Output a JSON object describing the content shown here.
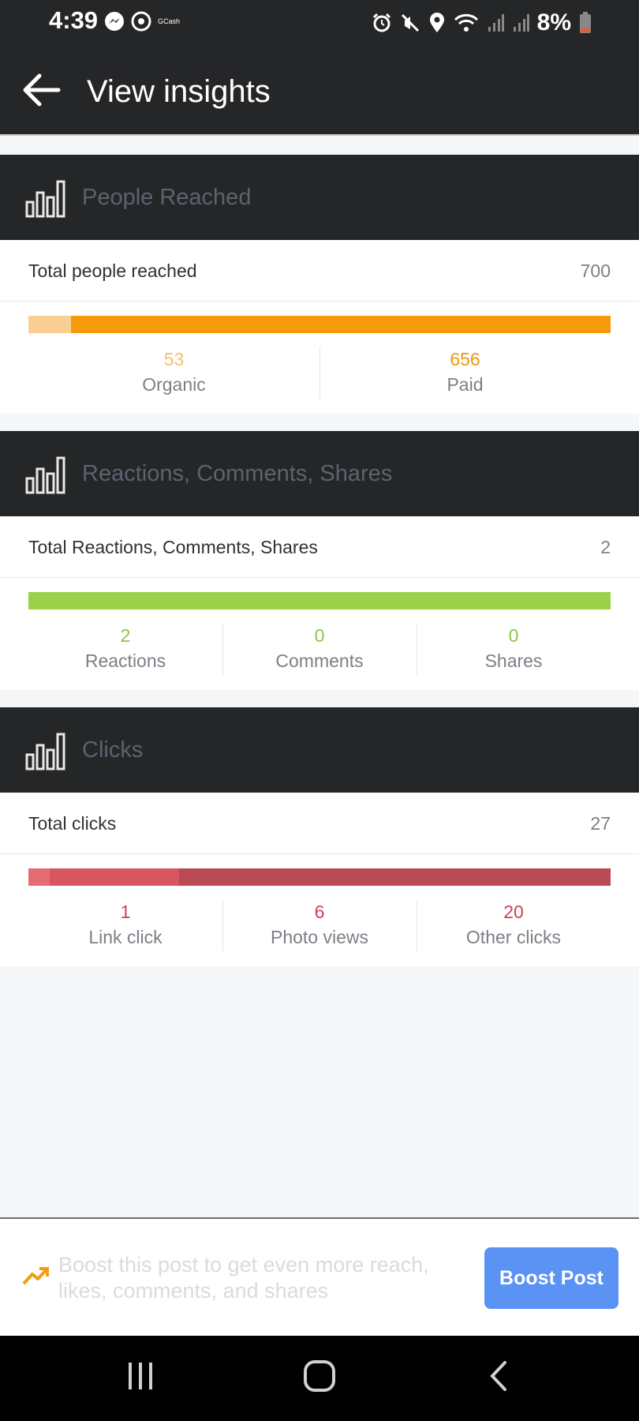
{
  "status_bar": {
    "time": "4:39",
    "app_label": "GCash",
    "battery": "8%",
    "icons_left": [
      "messenger-icon",
      "gcash-icon"
    ],
    "icons_right": [
      "alarm-icon",
      "mute-icon",
      "location-icon",
      "wifi-icon",
      "signal-icon",
      "signal-icon",
      "battery-icon"
    ]
  },
  "header": {
    "title": "View insights",
    "back_icon": "arrow-left-icon"
  },
  "sections": {
    "people": {
      "title": "People Reached",
      "total_label": "Total people reached",
      "total_value": "700",
      "bar_colors": [
        "#fbcf93",
        "#f59a0c"
      ],
      "stats": [
        {
          "value": "53",
          "label": "Organic",
          "color": "#f7bf6b"
        },
        {
          "value": "656",
          "label": "Paid",
          "color": "#f0960b"
        }
      ]
    },
    "engagement": {
      "title": "Reactions, Comments, Shares",
      "total_label": "Total Reactions, Comments, Shares",
      "total_value": "2",
      "bar_colors": [
        "#9bd04a"
      ],
      "stats": [
        {
          "value": "2",
          "label": "Reactions",
          "color": "#8dc63f"
        },
        {
          "value": "0",
          "label": "Comments",
          "color": "#8dc63f"
        },
        {
          "value": "0",
          "label": "Shares",
          "color": "#8dc63f"
        }
      ]
    },
    "clicks": {
      "title": "Clicks",
      "total_label": "Total clicks",
      "total_value": "27",
      "bar_colors": [
        "#e56b74",
        "#d85562",
        "#b94a56"
      ],
      "stats": [
        {
          "value": "1",
          "label": "Link click",
          "color": "#c84452"
        },
        {
          "value": "6",
          "label": "Photo views",
          "color": "#c84452"
        },
        {
          "value": "20",
          "label": "Other clicks",
          "color": "#c84452"
        }
      ]
    }
  },
  "boost": {
    "text": "Boost this post to get even more reach, likes, comments, and shares",
    "button_label": "Boost Post",
    "icon": "trending-up-icon"
  },
  "nav_bar": {
    "icons": [
      "recent-apps-icon",
      "home-icon",
      "back-icon"
    ]
  }
}
